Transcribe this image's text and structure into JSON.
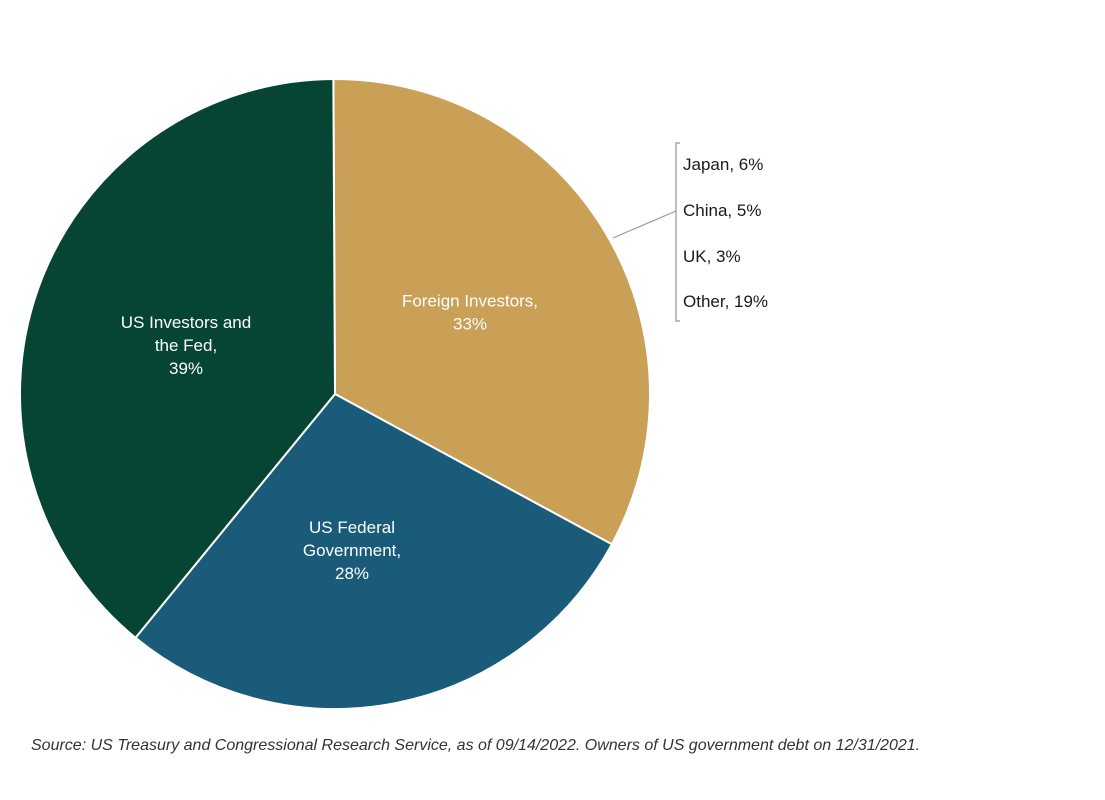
{
  "chart_data": {
    "type": "pie",
    "title": "",
    "slices": [
      {
        "label_lines": [
          "Foreign Investors,",
          "33%"
        ],
        "name": "Foreign Investors",
        "value": 33,
        "color": "#C9A055"
      },
      {
        "label_lines": [
          "US Federal",
          "Government,",
          "28%"
        ],
        "name": "US Federal Government",
        "value": 28,
        "color": "#195B79"
      },
      {
        "label_lines": [
          "US Investors and",
          "the Fed,",
          "39%"
        ],
        "name": "US Investors and the Fed",
        "value": 39,
        "color": "#064534"
      }
    ],
    "breakdown": {
      "parent": "Foreign Investors",
      "items": [
        {
          "label": "Japan, 6%",
          "value": 6
        },
        {
          "label": "China, 5%",
          "value": 5
        },
        {
          "label": "UK, 3%",
          "value": 3
        },
        {
          "label": "Other, 19%",
          "value": 19
        }
      ]
    },
    "label_color": "#FFFFFF",
    "slice_border_color": "#FFFFFF"
  },
  "source_note": "Source: US Treasury and Congressional Research Service, as of 09/14/2022. Owners of US government debt on 12/31/2021."
}
